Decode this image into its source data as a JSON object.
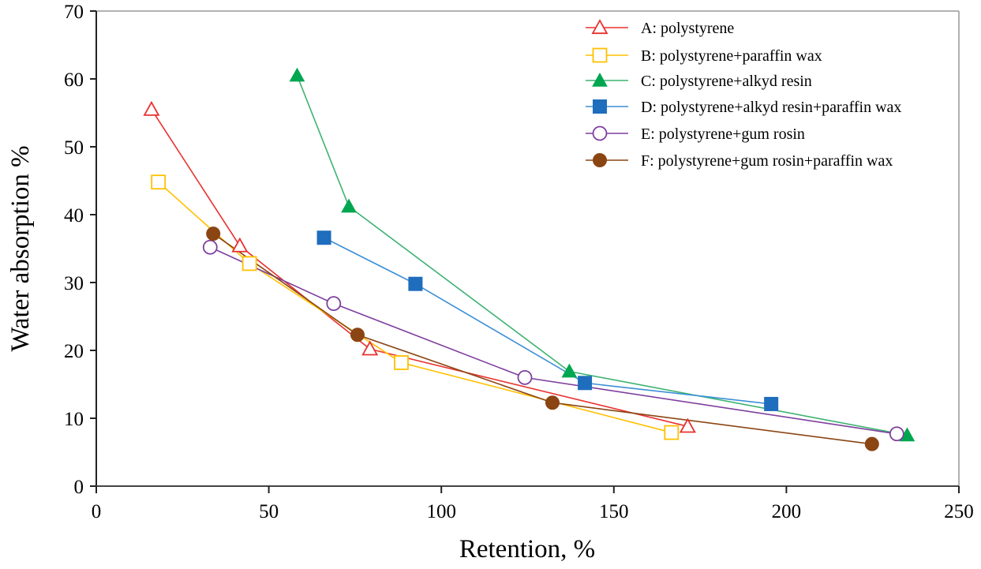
{
  "chart_data": {
    "type": "line",
    "title": "",
    "xlabel": "Retention, %",
    "ylabel": "Water absorption %",
    "xlim": [
      0,
      250
    ],
    "ylim": [
      0,
      70
    ],
    "xticks": [
      0,
      50,
      100,
      150,
      200,
      250
    ],
    "yticks": [
      0,
      10,
      20,
      30,
      40,
      50,
      60,
      70
    ],
    "grid": false,
    "legend_position": "top-right",
    "series": [
      {
        "name": "A: polystyrene",
        "marker": "triangle-open",
        "color": "#e8312f",
        "line_color": "#e8312f",
        "x": [
          16.0,
          41.6,
          79.3,
          171.4
        ],
        "y": [
          55.5,
          35.4,
          20.2,
          8.8
        ]
      },
      {
        "name": "B: polystyrene+paraffin wax",
        "marker": "square-open",
        "color": "#ffc000",
        "line_color": "#ffc000",
        "x": [
          18.0,
          44.4,
          88.4,
          166.7
        ],
        "y": [
          44.8,
          32.8,
          18.2,
          7.9
        ]
      },
      {
        "name": "C: polystyrene+alkyd resin",
        "marker": "triangle-filled",
        "color": "#00a650",
        "line_color": "#3cb371",
        "x": [
          58.2,
          73.2,
          137.1,
          235.0
        ],
        "y": [
          60.5,
          41.2,
          16.9,
          7.5
        ]
      },
      {
        "name": "D: polystyrene+alkyd resin+paraffin wax",
        "marker": "square-filled",
        "color": "#1f6dbd",
        "line_color": "#3b8fd6",
        "x": [
          66.0,
          92.5,
          141.6,
          195.6
        ],
        "y": [
          36.6,
          29.8,
          15.2,
          12.1
        ]
      },
      {
        "name": "E: polystyrene+gum rosin",
        "marker": "circle-open",
        "color": "#7e3f9e",
        "line_color": "#7e3f9e",
        "x": [
          33.0,
          68.8,
          124.2,
          232.0
        ],
        "y": [
          35.2,
          26.9,
          16.0,
          7.7
        ]
      },
      {
        "name": "F: polystyrene+gum rosin+paraffin wax",
        "marker": "circle-filled",
        "color": "#8b4513",
        "line_color": "#8b4513",
        "x": [
          33.9,
          75.7,
          132.2,
          224.8
        ],
        "y": [
          37.2,
          22.3,
          12.3,
          6.2
        ]
      }
    ]
  }
}
